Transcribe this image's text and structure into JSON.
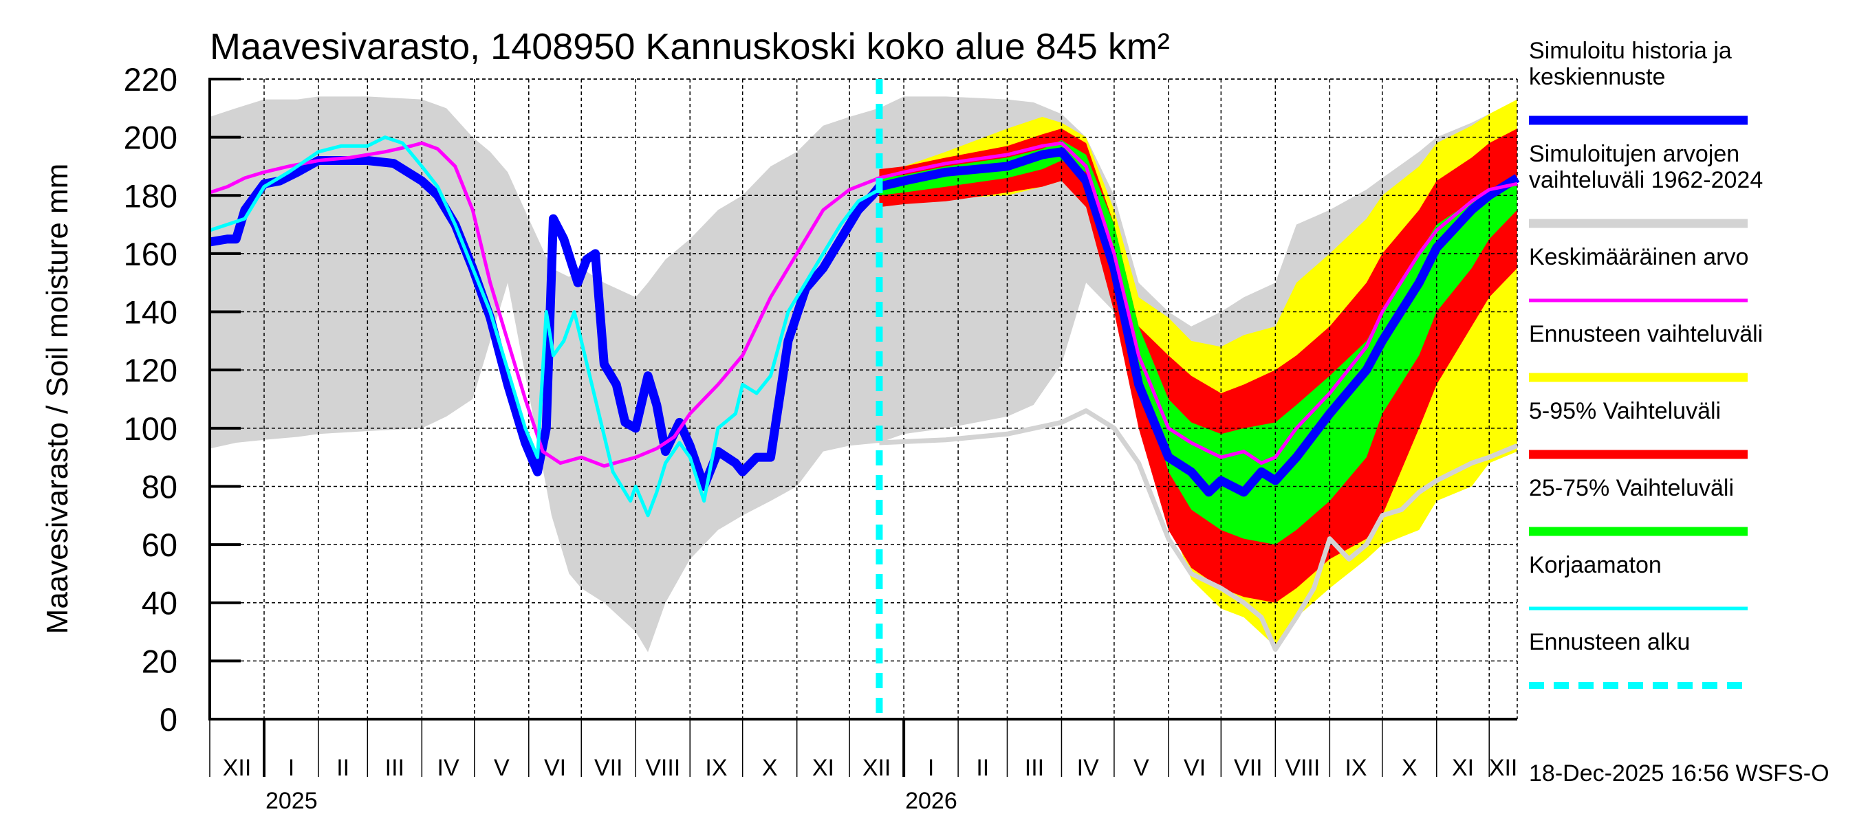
{
  "chart_data": {
    "type": "area",
    "title": "Maavesivarasto, 1408950 Kannuskoski koko alue 845 km²",
    "ylabel": "Maavesivarasto / Soil moisture   mm",
    "xlabel": "",
    "ylim": [
      0,
      220
    ],
    "yticks": [
      0,
      20,
      40,
      60,
      80,
      100,
      120,
      140,
      160,
      180,
      200,
      220
    ],
    "x_unit": "days since 1 Dec 2024",
    "xlim": [
      0,
      746
    ],
    "grid": true,
    "legend_position": "right",
    "months": [
      {
        "label": "XII",
        "start": 0
      },
      {
        "label": "I",
        "start": 31
      },
      {
        "label": "II",
        "start": 62
      },
      {
        "label": "III",
        "start": 90
      },
      {
        "label": "IV",
        "start": 121
      },
      {
        "label": "V",
        "start": 151
      },
      {
        "label": "VI",
        "start": 182
      },
      {
        "label": "VII",
        "start": 212
      },
      {
        "label": "VIII",
        "start": 243
      },
      {
        "label": "IX",
        "start": 274
      },
      {
        "label": "X",
        "start": 304
      },
      {
        "label": "XI",
        "start": 335
      },
      {
        "label": "XII",
        "start": 365
      },
      {
        "label": "I",
        "start": 396
      },
      {
        "label": "II",
        "start": 427
      },
      {
        "label": "III",
        "start": 455
      },
      {
        "label": "IV",
        "start": 486
      },
      {
        "label": "V",
        "start": 516
      },
      {
        "label": "VI",
        "start": 547
      },
      {
        "label": "VII",
        "start": 577
      },
      {
        "label": "VIII",
        "start": 608
      },
      {
        "label": "IX",
        "start": 639
      },
      {
        "label": "X",
        "start": 669
      },
      {
        "label": "XI",
        "start": 700
      },
      {
        "label": "XII",
        "start": 730
      }
    ],
    "years": [
      {
        "label": "2025",
        "start": 31
      },
      {
        "label": "2026",
        "start": 396
      }
    ],
    "forecast_start": 382,
    "legend": [
      {
        "label": "Simuloitu historia ja keskiennuste",
        "lines": [
          "Simuloitu historia ja",
          "keskiennuste"
        ],
        "color": "#0000ff",
        "style": "thick"
      },
      {
        "label": "Simuloitujen arvojen vaihteluväli 1962-2024",
        "lines": [
          "Simuloitujen arvojen",
          "vaihteluväli 1962-2024"
        ],
        "color": "#d3d3d3",
        "style": "thick"
      },
      {
        "label": "Keskimääräinen arvo",
        "lines": [
          "Keskimääräinen arvo"
        ],
        "color": "#ff00ff",
        "style": "thin"
      },
      {
        "label": "Ennusteen vaihteluväli",
        "lines": [
          "Ennusteen vaihteluväli"
        ],
        "color": "#ffff00",
        "style": "thick"
      },
      {
        "label": "5-95% Vaihteluväli",
        "lines": [
          "5-95% Vaihteluväli"
        ],
        "color": "#ff0000",
        "style": "thick"
      },
      {
        "label": "25-75% Vaihteluväli",
        "lines": [
          "25-75% Vaihteluväli"
        ],
        "color": "#00ff00",
        "style": "thick"
      },
      {
        "label": "Korjaamaton",
        "lines": [
          "Korjaamaton"
        ],
        "color": "#00ffff",
        "style": "thin"
      },
      {
        "label": "Ennusteen alku",
        "lines": [
          "Ennusteen alku"
        ],
        "color": "#00ffff",
        "style": "dashed"
      }
    ],
    "series": [
      {
        "name": "Simuloitujen arvojen vaihteluväli 1962-2024",
        "kind": "band",
        "color": "#d3d3d3",
        "x": [
          0,
          15,
          31,
          50,
          62,
          90,
          121,
          135,
          150,
          160,
          170,
          182,
          195,
          205,
          212,
          225,
          243,
          250,
          260,
          274,
          290,
          304,
          320,
          335,
          350,
          365,
          382,
          396,
          420,
          455,
          470,
          486,
          500,
          516,
          530,
          547,
          560,
          577,
          590,
          608,
          620,
          639,
          660,
          669,
          690,
          700,
          720,
          730,
          746
        ],
        "lower": [
          93,
          95,
          96,
          97,
          98,
          99,
          100,
          104,
          110,
          130,
          150,
          112,
          70,
          50,
          45,
          40,
          30,
          23,
          40,
          55,
          65,
          70,
          75,
          80,
          92,
          94,
          95,
          98,
          100,
          104,
          108,
          122,
          150,
          140,
          112,
          92,
          85,
          75,
          70,
          62,
          60,
          65,
          70,
          75,
          82,
          88,
          95,
          98,
          100
        ],
        "upper": [
          207,
          210,
          213,
          213,
          214,
          214,
          213,
          210,
          200,
          195,
          188,
          172,
          155,
          152,
          155,
          150,
          145,
          150,
          158,
          165,
          175,
          180,
          190,
          195,
          204,
          207,
          210,
          214,
          214,
          213,
          212,
          208,
          200,
          180,
          150,
          140,
          135,
          140,
          145,
          150,
          170,
          175,
          182,
          186,
          195,
          200,
          205,
          208,
          212
        ]
      },
      {
        "name": "Ennusteen vaihteluväli",
        "kind": "band",
        "color": "#ffff00",
        "x": [
          382,
          396,
          420,
          455,
          475,
          486,
          500,
          516,
          530,
          547,
          560,
          577,
          590,
          608,
          620,
          639,
          660,
          669,
          690,
          700,
          720,
          730,
          746
        ],
        "lower": [
          178,
          177,
          179,
          180,
          183,
          185,
          178,
          150,
          110,
          70,
          48,
          38,
          35,
          25,
          35,
          45,
          55,
          60,
          65,
          75,
          80,
          88,
          92
        ],
        "upper": [
          188,
          190,
          195,
          203,
          207,
          205,
          200,
          175,
          145,
          138,
          130,
          128,
          132,
          135,
          150,
          160,
          172,
          180,
          190,
          198,
          204,
          208,
          213
        ]
      },
      {
        "name": "5-95% Vaihteluväli",
        "kind": "band",
        "color": "#ff0000",
        "x": [
          382,
          396,
          420,
          455,
          475,
          486,
          500,
          516,
          530,
          547,
          560,
          577,
          590,
          608,
          620,
          639,
          660,
          669,
          690,
          700,
          720,
          730,
          746
        ],
        "lower": [
          176,
          177,
          178,
          181,
          183,
          185,
          176,
          140,
          100,
          65,
          52,
          45,
          42,
          40,
          45,
          55,
          62,
          70,
          100,
          115,
          135,
          145,
          155
        ],
        "upper": [
          189,
          190,
          193,
          197,
          201,
          203,
          198,
          170,
          135,
          125,
          118,
          112,
          115,
          120,
          125,
          135,
          150,
          160,
          175,
          185,
          193,
          198,
          203
        ]
      },
      {
        "name": "25-75% Vaihteluväli",
        "kind": "band",
        "color": "#00ff00",
        "x": [
          382,
          396,
          420,
          455,
          475,
          486,
          500,
          516,
          530,
          547,
          560,
          577,
          590,
          608,
          620,
          639,
          660,
          669,
          690,
          700,
          720,
          730,
          746
        ],
        "lower": [
          180,
          181,
          183,
          186,
          189,
          192,
          188,
          160,
          120,
          85,
          72,
          65,
          62,
          60,
          65,
          75,
          90,
          105,
          125,
          140,
          155,
          165,
          175
        ],
        "upper": [
          186,
          187,
          190,
          193,
          196,
          199,
          194,
          170,
          135,
          110,
          102,
          98,
          100,
          102,
          108,
          118,
          130,
          140,
          160,
          170,
          178,
          182,
          186
        ]
      },
      {
        "name": "Simuloitu historia ja keskiennuste",
        "kind": "line",
        "color": "#0000ff",
        "width": "thick",
        "x": [
          0,
          10,
          15,
          20,
          31,
          40,
          50,
          62,
          75,
          90,
          105,
          121,
          130,
          140,
          150,
          160,
          170,
          175,
          180,
          187,
          192,
          196,
          202,
          210,
          215,
          220,
          225,
          232,
          237,
          243,
          250,
          255,
          260,
          268,
          274,
          282,
          290,
          300,
          304,
          312,
          320,
          330,
          340,
          350,
          360,
          370,
          378,
          382,
          396,
          420,
          455,
          475,
          486,
          500,
          516,
          530,
          547,
          560,
          570,
          577,
          590,
          600,
          608,
          620,
          639,
          660,
          669,
          690,
          700,
          720,
          730,
          746
        ],
        "y": [
          164,
          165,
          165,
          175,
          184,
          185,
          188,
          192,
          192,
          192,
          191,
          185,
          180,
          170,
          155,
          138,
          115,
          105,
          95,
          85,
          100,
          172,
          165,
          150,
          158,
          160,
          122,
          115,
          102,
          100,
          118,
          108,
          92,
          102,
          94,
          80,
          92,
          88,
          85,
          90,
          90,
          130,
          148,
          155,
          165,
          175,
          180,
          183,
          185,
          188,
          190,
          194,
          195,
          185,
          155,
          115,
          90,
          85,
          78,
          82,
          78,
          85,
          82,
          90,
          105,
          120,
          130,
          150,
          162,
          175,
          180,
          186
        ]
      },
      {
        "name": "Keskimääräinen arvo",
        "kind": "line",
        "color": "#ff00ff",
        "width": "thin",
        "x": [
          0,
          10,
          20,
          31,
          45,
          62,
          80,
          100,
          115,
          121,
          130,
          140,
          150,
          160,
          170,
          180,
          190,
          200,
          212,
          225,
          243,
          255,
          265,
          274,
          290,
          304,
          320,
          335,
          350,
          365,
          382,
          396,
          420,
          455,
          475,
          486,
          500,
          516,
          530,
          547,
          560,
          570,
          577,
          590,
          600,
          608,
          620,
          639,
          660,
          669,
          690,
          700,
          720,
          730,
          746
        ],
        "y": [
          181,
          183,
          186,
          188,
          190,
          192,
          193,
          195,
          197,
          198,
          196,
          190,
          175,
          150,
          130,
          110,
          92,
          88,
          90,
          87,
          90,
          93,
          97,
          105,
          115,
          125,
          145,
          160,
          175,
          182,
          186,
          188,
          191,
          194,
          197,
          198,
          190,
          160,
          125,
          100,
          95,
          92,
          90,
          92,
          88,
          90,
          100,
          112,
          128,
          140,
          160,
          168,
          178,
          182,
          184
        ]
      },
      {
        "name": "Korjaamaton",
        "kind": "line",
        "color": "#00ffff",
        "width": "thin",
        "x": [
          0,
          10,
          20,
          31,
          45,
          62,
          75,
          90,
          100,
          110,
          121,
          130,
          140,
          150,
          160,
          170,
          180,
          187,
          192,
          196,
          202,
          208,
          212,
          220,
          230,
          240,
          243,
          250,
          255,
          260,
          268,
          274,
          282,
          290,
          300,
          304,
          312,
          320,
          330,
          340,
          350,
          360,
          370,
          382
        ],
        "y": [
          168,
          170,
          172,
          183,
          188,
          195,
          197,
          197,
          200,
          198,
          190,
          183,
          170,
          155,
          140,
          120,
          100,
          90,
          140,
          125,
          130,
          140,
          130,
          110,
          85,
          75,
          80,
          70,
          78,
          88,
          95,
          90,
          75,
          100,
          105,
          115,
          112,
          118,
          140,
          150,
          160,
          170,
          178,
          182
        ]
      },
      {
        "name": "Simuloitujen arvojen vaihteluväli 1962-2024 (forecast-period bounds)",
        "kind": "line",
        "color": "#d3d3d3",
        "width": "medium",
        "x": [
          382,
          420,
          455,
          486,
          500,
          516,
          530,
          547,
          560,
          577,
          590,
          600,
          608,
          620,
          630,
          639,
          650,
          660,
          669,
          680,
          690,
          700,
          720,
          730,
          746
        ],
        "y": [
          95,
          96,
          98,
          102,
          106,
          100,
          88,
          62,
          50,
          45,
          40,
          35,
          24,
          35,
          45,
          62,
          55,
          60,
          70,
          72,
          78,
          82,
          88,
          90,
          94
        ]
      }
    ]
  },
  "footer": {
    "timestamp": "18-Dec-2025 16:56 WSFS-O"
  }
}
